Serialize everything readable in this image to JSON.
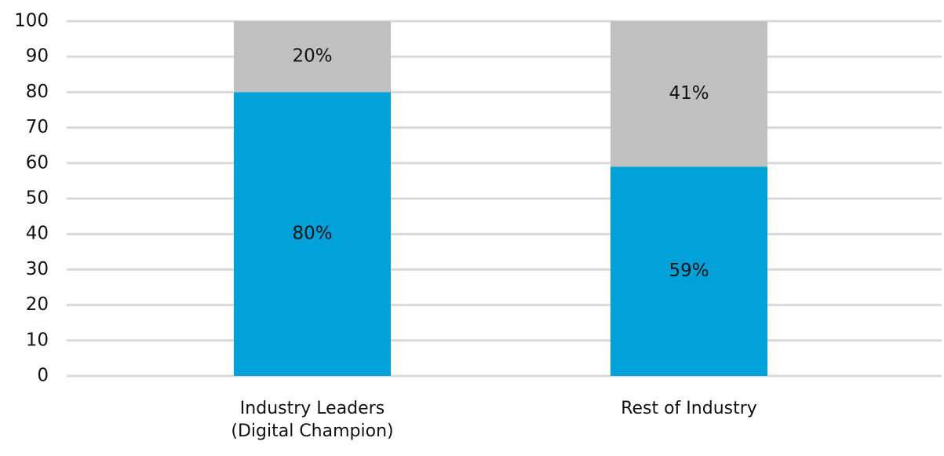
{
  "chart_data": {
    "type": "stacked_bar",
    "categories": [
      "Industry Leaders (Digital Champion)",
      "Rest of Industry"
    ],
    "series": [
      {
        "color": "#00a2d9",
        "values": [
          80,
          59
        ],
        "value_labels": [
          "80%",
          "59%"
        ]
      },
      {
        "color": "#c0c0c0",
        "values": [
          20,
          41
        ],
        "value_labels": [
          "20%",
          "41%"
        ]
      }
    ],
    "ylim": [
      0,
      100
    ],
    "yticks": [
      0,
      10,
      20,
      30,
      40,
      50,
      60,
      70,
      80,
      90,
      100
    ],
    "grid": true
  }
}
